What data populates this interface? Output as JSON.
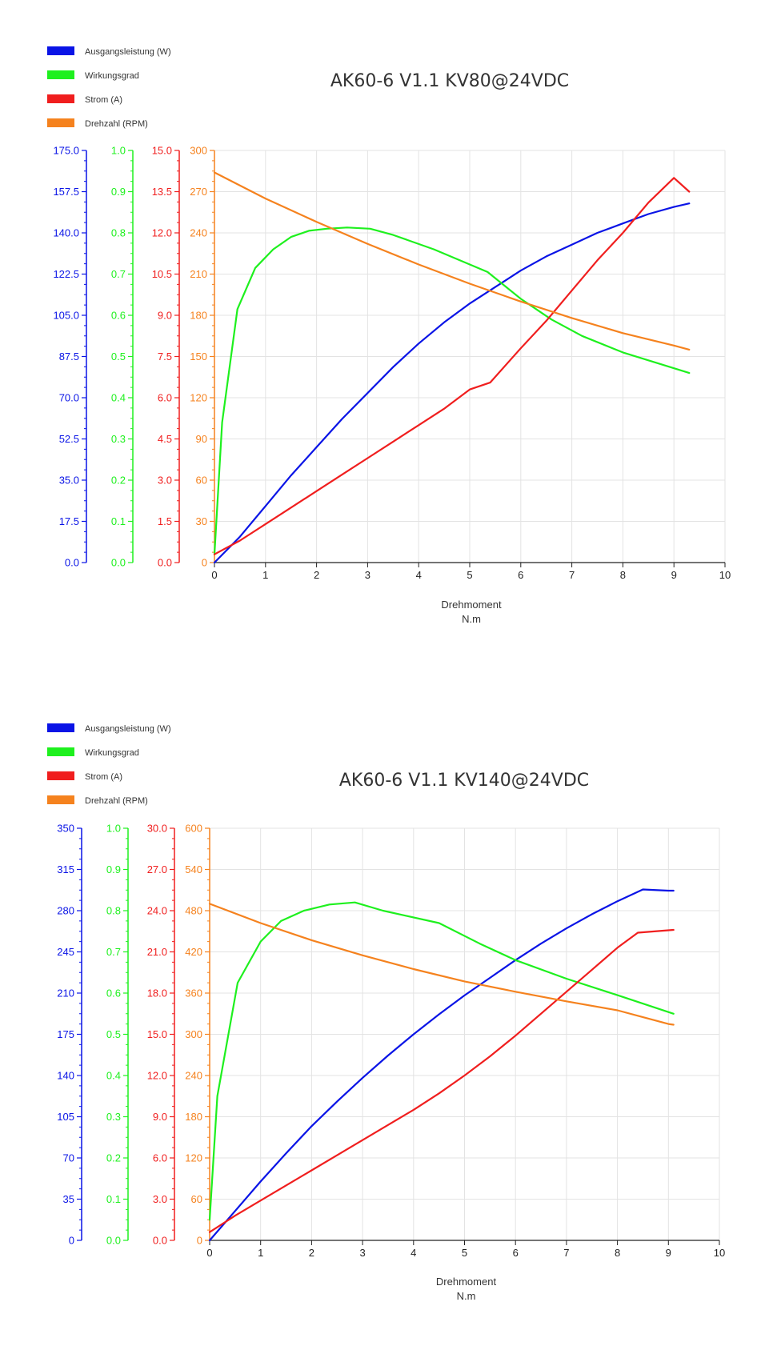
{
  "chart_data": [
    {
      "type": "line",
      "title": "AK60-6 V1.1 KV80@24VDC",
      "xlabel": "Drehmoment",
      "xunit": "N.m",
      "xlim": [
        0,
        10
      ],
      "xticks": [
        "0",
        "1",
        "2",
        "3",
        "4",
        "5",
        "6",
        "7",
        "8",
        "9",
        "10"
      ],
      "grid": true,
      "legend_position": "top-left",
      "legend": [
        {
          "label": "Ausgangsleistung (W)",
          "color": "#0a14e6"
        },
        {
          "label": "Wirkungsgrad",
          "color": "#1ef01e"
        },
        {
          "label": "Strom (A)",
          "color": "#f01e1e"
        },
        {
          "label": "Drehzahl (RPM)",
          "color": "#f5821e"
        }
      ],
      "axes": [
        {
          "color": "#0a14e6",
          "ylim": [
            0,
            175
          ],
          "ticks": [
            "0.0",
            "17.5",
            "35.0",
            "52.5",
            "70.0",
            "87.5",
            "105.0",
            "122.5",
            "140.0",
            "157.5",
            "175.0"
          ]
        },
        {
          "color": "#1ef01e",
          "ylim": [
            0,
            1
          ],
          "ticks": [
            "0.0",
            "0.1",
            "0.2",
            "0.3",
            "0.4",
            "0.5",
            "0.6",
            "0.7",
            "0.8",
            "0.9",
            "1.0"
          ]
        },
        {
          "color": "#f01e1e",
          "ylim": [
            0,
            15
          ],
          "ticks": [
            "0.0",
            "1.5",
            "3.0",
            "4.5",
            "6.0",
            "7.5",
            "9.0",
            "10.5",
            "12.0",
            "13.5",
            "15.0"
          ]
        },
        {
          "color": "#f5821e",
          "ylim": [
            0,
            300
          ],
          "ticks": [
            "0",
            "30",
            "60",
            "90",
            "120",
            "150",
            "180",
            "210",
            "240",
            "270",
            "300"
          ]
        }
      ],
      "series": [
        {
          "name": "Ausgangsleistung (W)",
          "axis": 0,
          "color": "#0a14e6",
          "x": [
            0,
            0.5,
            1,
            1.5,
            2,
            2.5,
            3,
            3.5,
            4,
            4.5,
            5,
            5.5,
            6,
            6.5,
            7,
            7.5,
            8,
            8.5,
            9,
            9.3
          ],
          "y": [
            0,
            11,
            24,
            37,
            49,
            61,
            72,
            83,
            93,
            102,
            110,
            117,
            124,
            130,
            135,
            140,
            144,
            148,
            151,
            152.5
          ]
        },
        {
          "name": "Wirkungsgrad",
          "axis": 1,
          "color": "#1ef01e",
          "x": [
            0,
            0.15,
            0.45,
            0.8,
            1.15,
            1.5,
            1.85,
            2.2,
            2.6,
            3.05,
            3.5,
            4.3,
            5.35,
            6,
            6.6,
            7.2,
            8,
            9.3
          ],
          "y": [
            0.02,
            0.34,
            0.615,
            0.715,
            0.76,
            0.79,
            0.805,
            0.81,
            0.813,
            0.81,
            0.795,
            0.76,
            0.705,
            0.64,
            0.59,
            0.55,
            0.51,
            0.46
          ]
        },
        {
          "name": "Strom (A)",
          "axis": 2,
          "color": "#f01e1e",
          "x": [
            0,
            0.5,
            1,
            1.5,
            2,
            2.5,
            3,
            3.5,
            4,
            4.5,
            5,
            5.4,
            6,
            6.5,
            7,
            7.5,
            8,
            8.5,
            9,
            9.3
          ],
          "y": [
            0.3,
            0.8,
            1.4,
            2.0,
            2.6,
            3.2,
            3.8,
            4.4,
            5.0,
            5.6,
            6.3,
            6.55,
            7.8,
            8.8,
            9.9,
            11.0,
            12.0,
            13.1,
            14.0,
            13.5
          ]
        },
        {
          "name": "Drehzahl (RPM)",
          "axis": 3,
          "color": "#f5821e",
          "x": [
            0,
            1,
            2,
            3,
            4,
            5,
            6,
            7,
            8,
            9,
            9.3
          ],
          "y": [
            284,
            265,
            248,
            232,
            217,
            203,
            190,
            178,
            167,
            158,
            155
          ]
        }
      ]
    },
    {
      "type": "line",
      "title": "AK60-6 V1.1 KV140@24VDC",
      "xlabel": "Drehmoment",
      "xunit": "N.m",
      "xlim": [
        0,
        10
      ],
      "xticks": [
        "0",
        "1",
        "2",
        "3",
        "4",
        "5",
        "6",
        "7",
        "8",
        "9",
        "10"
      ],
      "grid": true,
      "legend_position": "top-left",
      "legend": [
        {
          "label": "Ausgangsleistung (W)",
          "color": "#0a14e6"
        },
        {
          "label": "Wirkungsgrad",
          "color": "#1ef01e"
        },
        {
          "label": "Strom (A)",
          "color": "#f01e1e"
        },
        {
          "label": "Drehzahl (RPM)",
          "color": "#f5821e"
        }
      ],
      "axes": [
        {
          "color": "#0a14e6",
          "ylim": [
            0,
            350
          ],
          "ticks": [
            "0",
            "35",
            "70",
            "105",
            "140",
            "175",
            "210",
            "245",
            "280",
            "315",
            "350"
          ]
        },
        {
          "color": "#1ef01e",
          "ylim": [
            0,
            1
          ],
          "ticks": [
            "0.0",
            "0.1",
            "0.2",
            "0.3",
            "0.4",
            "0.5",
            "0.6",
            "0.7",
            "0.8",
            "0.9",
            "1.0"
          ]
        },
        {
          "color": "#f01e1e",
          "ylim": [
            0,
            30
          ],
          "ticks": [
            "0.0",
            "3.0",
            "6.0",
            "9.0",
            "12.0",
            "15.0",
            "18.0",
            "21.0",
            "24.0",
            "27.0",
            "30.0"
          ]
        },
        {
          "color": "#f5821e",
          "ylim": [
            0,
            600
          ],
          "ticks": [
            "0",
            "60",
            "120",
            "180",
            "240",
            "300",
            "360",
            "420",
            "480",
            "540",
            "600"
          ]
        }
      ],
      "series": [
        {
          "name": "Ausgangsleistung (W)",
          "axis": 0,
          "color": "#0a14e6",
          "x": [
            0,
            0.5,
            1,
            1.5,
            2,
            2.5,
            3,
            3.5,
            4,
            4.5,
            5,
            5.5,
            6,
            6.5,
            7,
            7.5,
            8,
            8.5,
            9,
            9.1
          ],
          "y": [
            0,
            25,
            50,
            74,
            97,
            118,
            138,
            157,
            175,
            192,
            208,
            223,
            238,
            252,
            265,
            277,
            288,
            298,
            297,
            297
          ]
        },
        {
          "name": "Wirkungsgrad",
          "axis": 1,
          "color": "#1ef01e",
          "x": [
            0,
            0.15,
            0.55,
            1,
            1.4,
            1.85,
            2.35,
            2.85,
            3.4,
            4.5,
            5.3,
            6,
            7,
            8,
            9.1
          ],
          "y": [
            0.05,
            0.35,
            0.625,
            0.725,
            0.775,
            0.8,
            0.815,
            0.82,
            0.8,
            0.77,
            0.72,
            0.68,
            0.635,
            0.595,
            0.55
          ]
        },
        {
          "name": "Strom (A)",
          "axis": 2,
          "color": "#f01e1e",
          "x": [
            0,
            0.5,
            1,
            1.5,
            2,
            2.5,
            3,
            3.5,
            4,
            4.5,
            5,
            5.5,
            6,
            6.5,
            7,
            7.5,
            8,
            8.4,
            9.1
          ],
          "y": [
            0.6,
            1.8,
            2.9,
            4.0,
            5.1,
            6.2,
            7.3,
            8.4,
            9.5,
            10.7,
            12.0,
            13.4,
            14.9,
            16.5,
            18.1,
            19.7,
            21.3,
            22.4,
            22.6
          ]
        },
        {
          "name": "Drehzahl (RPM)",
          "axis": 3,
          "color": "#f5821e",
          "x": [
            0,
            1,
            2,
            3,
            4,
            5,
            6,
            7,
            8,
            9,
            9.1
          ],
          "y": [
            490,
            462,
            437,
            415,
            395,
            377,
            362,
            348,
            335,
            315,
            314
          ]
        }
      ]
    }
  ]
}
